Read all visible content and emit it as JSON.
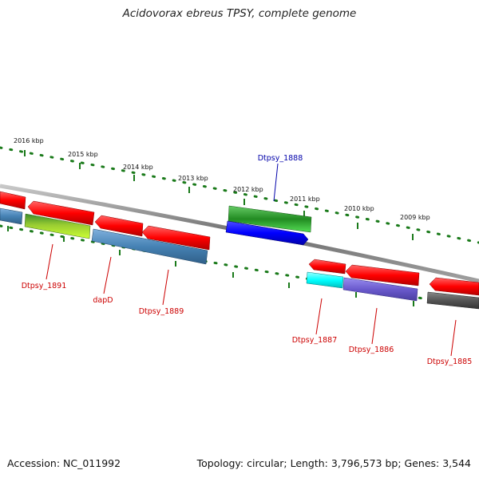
{
  "title": "Acidovorax ebreus TPSY, complete genome",
  "footer": {
    "accession": "Accession: NC_011992",
    "summary": "Topology: circular; Length: 3,796,573 bp; Genes: 3,544"
  },
  "scale_labels": [
    "2016 kbp",
    "2015 kbp",
    "2014 kbp",
    "2013 kbp",
    "2012 kbp",
    "2011 kbp",
    "2010 kbp",
    "2009 kbp"
  ],
  "gene_labels": {
    "g1888": "Dtpsy_1888",
    "g1891": "Dtpsy_1891",
    "dapD": "dapD",
    "g1889": "Dtpsy_1889",
    "g1887": "Dtpsy_1887",
    "g1886": "Dtpsy_1886",
    "g1885": "Dtpsy_1885"
  },
  "colors": {
    "forward_cds": "#ff0000",
    "feature_green": "#228b22",
    "feature_blue": "#0000ff",
    "feature_steelblue": "#4682b4",
    "feature_yellowgreen": "#9acd32",
    "feature_cyan": "#00ffff",
    "feature_slateblue": "#6a5acd",
    "feature_gray": "#555555",
    "ticks": "#1a7a1a",
    "label_red": "#cc0000",
    "label_blue": "#0000aa"
  }
}
